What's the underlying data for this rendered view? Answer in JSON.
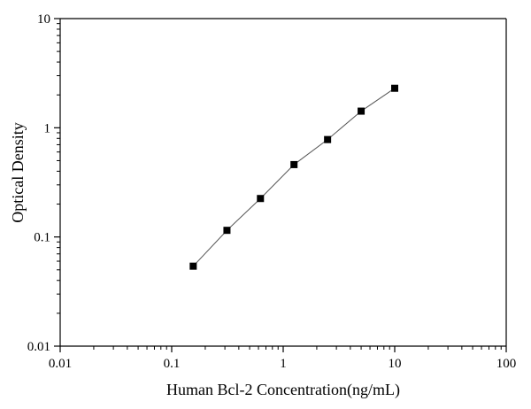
{
  "chart_data": {
    "type": "scatter",
    "title": "",
    "xlabel": "Human Bcl-2 Concentration(ng/mL)",
    "ylabel": "Optical Density",
    "xscale": "log",
    "yscale": "log",
    "xlim": [
      0.01,
      100
    ],
    "ylim": [
      0.01,
      10
    ],
    "x_ticks": [
      0.01,
      0.1,
      1,
      10,
      100
    ],
    "x_tick_labels": [
      "0.01",
      "0.1",
      "1",
      "10",
      "100"
    ],
    "y_ticks": [
      0.01,
      0.1,
      1,
      10
    ],
    "y_tick_labels": [
      "0.01",
      "0.1",
      "1",
      "10"
    ],
    "grid": false,
    "legend": "none",
    "colors": {
      "marker": "#000000",
      "line": "#555555",
      "axis": "#000000"
    },
    "series": [
      {
        "x": [
          0.156,
          0.313,
          0.625,
          1.25,
          2.5,
          5,
          10
        ],
        "y": [
          0.054,
          0.115,
          0.225,
          0.46,
          0.78,
          1.42,
          2.3
        ],
        "marker": "square",
        "connect_line": true
      }
    ]
  }
}
